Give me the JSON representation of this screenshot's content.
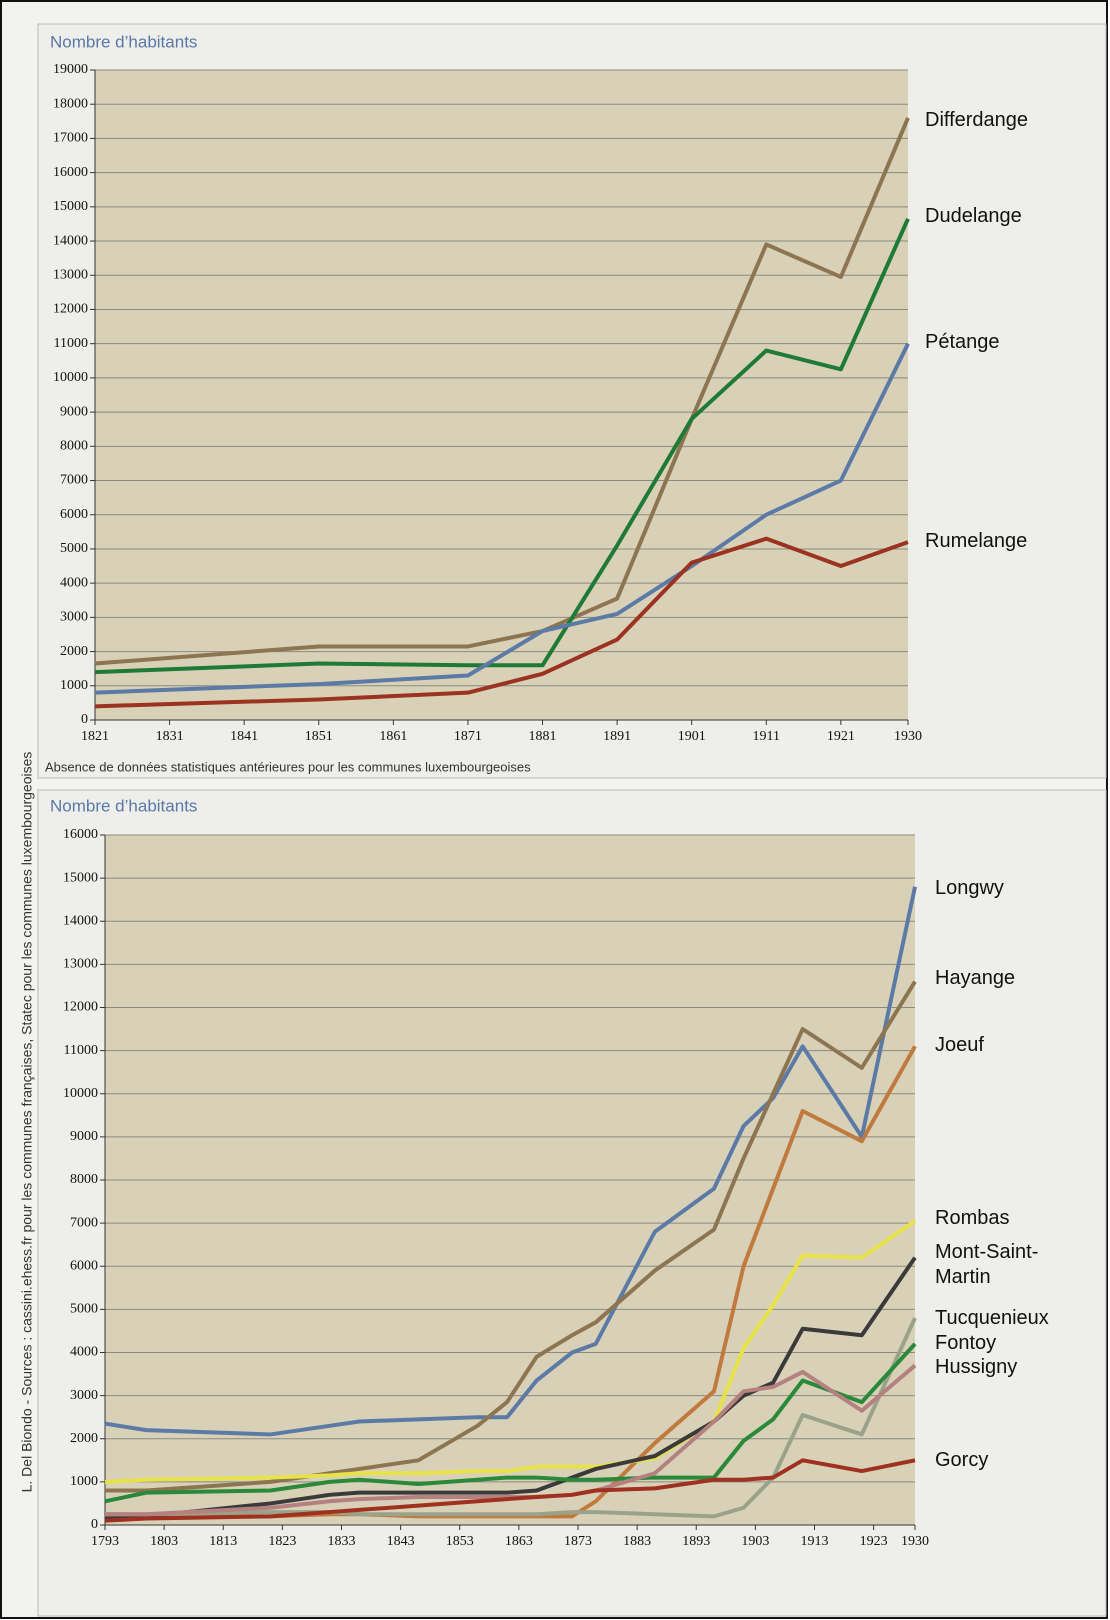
{
  "credit": "L. Del Biondo  -  Sources : cassini.ehess.fr pour les communes françaises, Statec pour les communes luxembourgeoises",
  "chart_data": [
    {
      "type": "line",
      "title": "Nombre d’habitants",
      "note": "Absence de données statistiques antérieures pour les communes luxembourgeoises",
      "x": [
        1821,
        1851,
        1871,
        1881,
        1891,
        1901,
        1911,
        1921,
        1930
      ],
      "xlim": [
        1821,
        1930
      ],
      "xticks": [
        1821,
        1831,
        1841,
        1851,
        1861,
        1871,
        1881,
        1891,
        1901,
        1911,
        1921,
        1930
      ],
      "ylim": [
        0,
        19000
      ],
      "yticks": [
        0,
        1000,
        2000,
        3000,
        4000,
        5000,
        6000,
        7000,
        8000,
        9000,
        10000,
        11000,
        12000,
        13000,
        14000,
        15000,
        16000,
        17000,
        18000,
        19000
      ],
      "grid": true,
      "series": [
        {
          "name": "Differdange",
          "color": "#8c7550",
          "values": [
            1650,
            2150,
            2150,
            2600,
            3550,
            8800,
            13900,
            12950,
            17600
          ]
        },
        {
          "name": "Dudelange",
          "color": "#1e7a34",
          "values": [
            1400,
            1650,
            1600,
            1600,
            5100,
            8800,
            10800,
            10250,
            14650
          ]
        },
        {
          "name": "Pétange",
          "color": "#5b7aa6",
          "values": [
            800,
            1050,
            1300,
            2600,
            3100,
            4500,
            6000,
            7000,
            11000
          ]
        },
        {
          "name": "Rumelange",
          "color": "#9b3320",
          "values": [
            400,
            600,
            800,
            1350,
            2350,
            4600,
            5300,
            4500,
            5200
          ]
        }
      ]
    },
    {
      "type": "line",
      "title": "Nombre d’habitants",
      "x": [
        1793,
        1800,
        1821,
        1831,
        1836,
        1846,
        1856,
        1861,
        1866,
        1872,
        1876,
        1886,
        1896,
        1901,
        1906,
        1911,
        1921,
        1930
      ],
      "xlim": [
        1793,
        1930
      ],
      "xticks": [
        1793,
        1803,
        1813,
        1823,
        1833,
        1843,
        1853,
        1863,
        1873,
        1883,
        1893,
        1903,
        1913,
        1923,
        1930
      ],
      "ylim": [
        0,
        16000
      ],
      "yticks": [
        0,
        1000,
        2000,
        3000,
        4000,
        5000,
        6000,
        7000,
        8000,
        9000,
        10000,
        11000,
        12000,
        13000,
        14000,
        15000,
        16000
      ],
      "grid": true,
      "series": [
        {
          "name": "Longwy",
          "color": "#5b7aa6",
          "values": [
            2350,
            2200,
            2100,
            2300,
            2400,
            2450,
            2500,
            2500,
            3350,
            4000,
            4200,
            6800,
            7800,
            9250,
            9900,
            11100,
            9000,
            14800
          ]
        },
        {
          "name": "Hayange",
          "color": "#8c7550",
          "values": [
            800,
            800,
            1000,
            1200,
            1300,
            1500,
            2300,
            2850,
            3900,
            4400,
            4700,
            5900,
            6850,
            8500,
            10000,
            11500,
            10600,
            12600
          ]
        },
        {
          "name": "Joeuf",
          "color": "#c07a3e",
          "values": [
            200,
            200,
            200,
            250,
            250,
            200,
            200,
            200,
            200,
            200,
            550,
            1900,
            3100,
            6000,
            7800,
            9600,
            8900,
            11100
          ]
        },
        {
          "name": "Rombas",
          "color": "#e8e24a",
          "values": [
            1000,
            1050,
            1100,
            1150,
            1200,
            1200,
            1250,
            1250,
            1350,
            1350,
            1350,
            1550,
            2400,
            4100,
            5100,
            6250,
            6200,
            7050
          ]
        },
        {
          "name": "Mont-Saint-Martin",
          "color": "#3a3a3a",
          "values": [
            150,
            200,
            500,
            700,
            750,
            750,
            750,
            750,
            800,
            1100,
            1300,
            1600,
            2400,
            3000,
            3300,
            4550,
            4400,
            6200
          ]
        },
        {
          "name": "Tucquenieux",
          "color": "#9aa38a",
          "values": [
            250,
            250,
            300,
            300,
            250,
            250,
            250,
            250,
            250,
            300,
            300,
            250,
            200,
            400,
            1100,
            2550,
            2100,
            4800
          ]
        },
        {
          "name": "Fontoy",
          "color": "#2a8a3a",
          "values": [
            550,
            750,
            800,
            1000,
            1050,
            950,
            1050,
            1100,
            1100,
            1050,
            1050,
            1100,
            1100,
            1950,
            2450,
            3350,
            2850,
            4200
          ]
        },
        {
          "name": "Hussigny",
          "color": "#b58080",
          "values": [
            250,
            250,
            400,
            550,
            600,
            650,
            650,
            650,
            650,
            700,
            800,
            1200,
            2400,
            3100,
            3200,
            3550,
            2650,
            3700
          ]
        },
        {
          "name": "Gorcy",
          "color": "#a03020",
          "values": [
            100,
            150,
            200,
            300,
            350,
            450,
            550,
            600,
            650,
            700,
            800,
            850,
            1050,
            1050,
            1100,
            1500,
            1250,
            1500
          ]
        }
      ]
    }
  ]
}
